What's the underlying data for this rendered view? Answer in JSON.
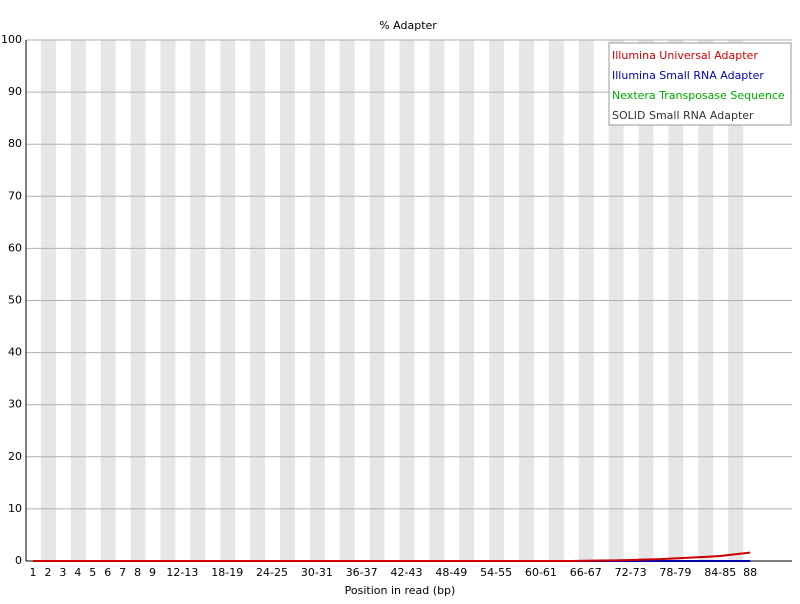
{
  "chart_data": {
    "type": "line",
    "title": "% Adapter",
    "x_label": "Position in read (bp)",
    "categories": [
      "1",
      "2",
      "3",
      "4",
      "5",
      "6",
      "7",
      "8",
      "9",
      null,
      "12-13",
      null,
      null,
      "18-19",
      null,
      null,
      "24-25",
      null,
      null,
      "30-31",
      null,
      null,
      "36-37",
      null,
      null,
      "42-43",
      null,
      null,
      "48-49",
      null,
      null,
      "54-55",
      null,
      null,
      "60-61",
      null,
      null,
      "66-67",
      null,
      null,
      "72-73",
      null,
      null,
      "78-79",
      null,
      null,
      "84-85",
      null,
      "88"
    ],
    "series": [
      {
        "name": "Illumina Universal Adapter",
        "color": "#cc0000",
        "values": [
          0,
          0,
          0,
          0,
          0,
          0,
          0,
          0,
          0,
          0,
          0,
          0,
          0,
          0,
          0,
          0,
          0,
          0,
          0,
          0,
          0,
          0,
          0,
          0,
          0,
          0,
          0,
          0,
          0,
          0,
          0,
          0,
          0,
          0,
          0,
          0,
          0,
          0.05,
          0.1,
          0.12,
          0.18,
          0.28,
          0.35,
          0.5,
          0.65,
          0.8,
          0.95,
          1.3,
          1.6
        ]
      },
      {
        "name": "Illumina Small RNA Adapter",
        "color": "#0000aa",
        "values": [
          0,
          0,
          0,
          0,
          0,
          0,
          0,
          0,
          0,
          0,
          0,
          0,
          0,
          0,
          0,
          0,
          0,
          0,
          0,
          0,
          0,
          0,
          0,
          0,
          0,
          0,
          0,
          0,
          0,
          0,
          0,
          0,
          0,
          0,
          0,
          0,
          0,
          0,
          0,
          0,
          0,
          0,
          0,
          0,
          0,
          0,
          0,
          0,
          0
        ]
      },
      {
        "name": "Nextera Transposase Sequence",
        "color": "#00aa00",
        "values": [
          0,
          0,
          0,
          0,
          0,
          0,
          0,
          0,
          0,
          0,
          0,
          0,
          0,
          0,
          0,
          0,
          0,
          0,
          0,
          0,
          0,
          0,
          0,
          0,
          0,
          0,
          0,
          0,
          0,
          0,
          0,
          0,
          0,
          0,
          0,
          0,
          0,
          0,
          0,
          0,
          0,
          0,
          0,
          0,
          0,
          0,
          0,
          0,
          0
        ]
      },
      {
        "name": "SOLID Small RNA Adapter",
        "color": "#333333",
        "values": [
          0,
          0,
          0,
          0,
          0,
          0,
          0,
          0,
          0,
          0,
          0,
          0,
          0,
          0,
          0,
          0,
          0,
          0,
          0,
          0,
          0,
          0,
          0,
          0,
          0,
          0,
          0,
          0,
          0,
          0,
          0,
          0,
          0,
          0,
          0,
          0,
          0,
          0,
          0,
          0,
          0,
          0,
          0,
          0,
          0,
          0,
          0,
          0,
          0
        ]
      }
    ],
    "ylim": [
      0,
      100
    ],
    "yticks": [
      0,
      10,
      20,
      30,
      40,
      50,
      60,
      70,
      80,
      90,
      100
    ],
    "grid": true,
    "legend": "top-right"
  }
}
